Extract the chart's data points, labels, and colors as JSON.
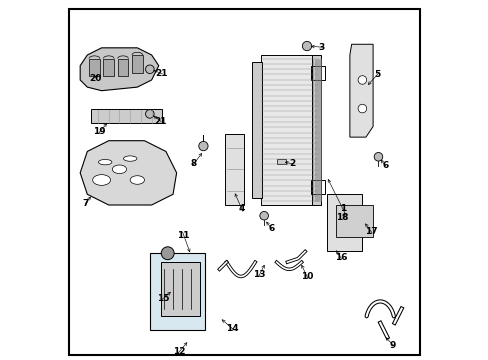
{
  "background_color": "#ffffff",
  "border_color": "#000000",
  "labels": [
    [
      1,
      0.775,
      0.42,
      0.73,
      0.51
    ],
    [
      2,
      0.635,
      0.545,
      0.605,
      0.552
    ],
    [
      3,
      0.715,
      0.872,
      0.678,
      0.875
    ],
    [
      4,
      0.492,
      0.42,
      0.47,
      0.47
    ],
    [
      5,
      0.872,
      0.795,
      0.84,
      0.76
    ],
    [
      6,
      0.575,
      0.365,
      0.556,
      0.39
    ],
    [
      6,
      0.895,
      0.54,
      0.876,
      0.563
    ],
    [
      7,
      0.055,
      0.435,
      0.075,
      0.46
    ],
    [
      8,
      0.358,
      0.545,
      0.386,
      0.582
    ],
    [
      9,
      0.916,
      0.038,
      0.89,
      0.065
    ],
    [
      10,
      0.675,
      0.23,
      0.656,
      0.27
    ],
    [
      11,
      0.33,
      0.345,
      0.35,
      0.29
    ],
    [
      12,
      0.318,
      0.02,
      0.345,
      0.052
    ],
    [
      13,
      0.542,
      0.235,
      0.56,
      0.27
    ],
    [
      14,
      0.465,
      0.085,
      0.43,
      0.115
    ],
    [
      15,
      0.272,
      0.168,
      0.3,
      0.192
    ],
    [
      16,
      0.77,
      0.282,
      0.752,
      0.31
    ],
    [
      17,
      0.855,
      0.355,
      0.833,
      0.385
    ],
    [
      18,
      0.775,
      0.395,
      0.785,
      0.415
    ],
    [
      19,
      0.095,
      0.635,
      0.12,
      0.665
    ],
    [
      20,
      0.082,
      0.785,
      0.095,
      0.8
    ],
    [
      21,
      0.265,
      0.665,
      0.238,
      0.685
    ],
    [
      21,
      0.268,
      0.798,
      0.238,
      0.81
    ]
  ]
}
